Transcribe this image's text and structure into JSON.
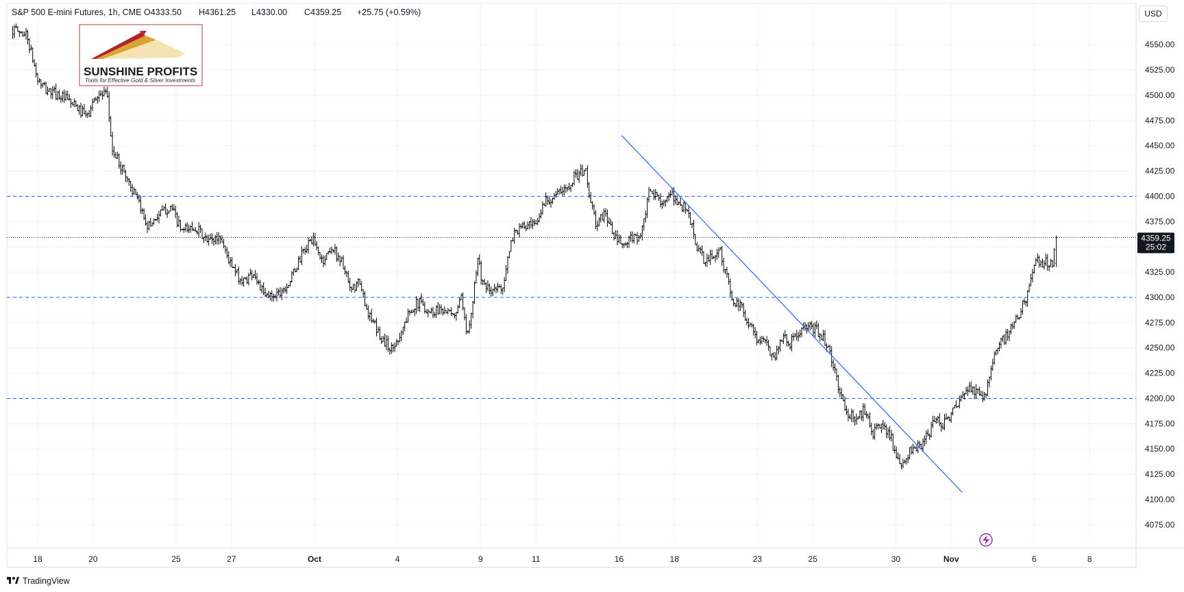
{
  "header": {
    "symbol_line": "S&P 500 E-mini Futures, 1h, CME",
    "open": "O4333.50",
    "high": "H4361.25",
    "low": "L4330.00",
    "close": "C4359.25",
    "change": "+25.75 (+0.59%)"
  },
  "currency": "USD",
  "price_badge": {
    "price": "4359.25",
    "countdown": "25:02"
  },
  "logo": {
    "name": "SUNSHINE PROFITS",
    "tagline": "Tools for Effective Gold & Silver Investments"
  },
  "footer": {
    "brand": "TradingView"
  },
  "icons": {
    "brand_icon": "tradingview-logo-icon",
    "lightning_icon": "lightning-icon"
  },
  "colors": {
    "candle": "#000000",
    "horizontal_levels": "#2962ff",
    "trend_line": "#2962ff",
    "current_price_line": "#131722",
    "lightning_icon": "#9c27b0"
  },
  "chart_data": {
    "type": "candlestick",
    "title": "S&P 500 E-mini Futures, 1h, CME",
    "y_axis": {
      "min": 4062.5,
      "max": 4575,
      "ticks": [
        4075,
        4100,
        4125,
        4150,
        4175,
        4200,
        4225,
        4250,
        4275,
        4300,
        4325,
        4350,
        4375,
        4400,
        4425,
        4450,
        4475,
        4500,
        4525,
        4550
      ],
      "tick_labels": [
        "4075.00",
        "4100.00",
        "4125.00",
        "4150.00",
        "4175.00",
        "4200.00",
        "4225.00",
        "4250.00",
        "4275.00",
        "4300.00",
        "4325.00",
        "4350.00",
        "4375.00",
        "4400.00",
        "4425.00",
        "4450.00",
        "4475.00",
        "4500.00",
        "4525.00",
        "4550.00"
      ],
      "side": "right"
    },
    "x_axis": {
      "tick_labels": [
        "18",
        "20",
        "25",
        "27",
        "Oct",
        "4",
        "9",
        "11",
        "16",
        "18",
        "23",
        "25",
        "30",
        "Nov",
        "6",
        "8"
      ],
      "tick_day_index": [
        0,
        2,
        5,
        7,
        10,
        13,
        16,
        18,
        21,
        23,
        26,
        28,
        31,
        33,
        36,
        38
      ]
    },
    "horizontal_levels": [
      4400,
      4300,
      4200
    ],
    "current_price": 4359.25,
    "trend_line": {
      "start": {
        "day_index": 21.1,
        "price": 4460
      },
      "end": {
        "day_index": 33.4,
        "price": 4107
      }
    },
    "price_path": [
      [
        -0.9,
        4565
      ],
      [
        -0.4,
        4560
      ],
      [
        0,
        4515
      ],
      [
        0.3,
        4505
      ],
      [
        0.8,
        4500
      ],
      [
        1.3,
        4490
      ],
      [
        1.8,
        4478
      ],
      [
        2.1,
        4500
      ],
      [
        2.5,
        4500
      ],
      [
        2.7,
        4445
      ],
      [
        3.2,
        4420
      ],
      [
        3.6,
        4395
      ],
      [
        4.0,
        4370
      ],
      [
        4.3,
        4380
      ],
      [
        4.8,
        4390
      ],
      [
        5.2,
        4365
      ],
      [
        5.7,
        4370
      ],
      [
        6.1,
        4355
      ],
      [
        6.6,
        4360
      ],
      [
        7.0,
        4330
      ],
      [
        7.4,
        4315
      ],
      [
        7.8,
        4325
      ],
      [
        8.2,
        4300
      ],
      [
        8.7,
        4305
      ],
      [
        9.1,
        4315
      ],
      [
        9.5,
        4340
      ],
      [
        9.9,
        4358
      ],
      [
        10.3,
        4335
      ],
      [
        10.6,
        4350
      ],
      [
        11.0,
        4335
      ],
      [
        11.3,
        4305
      ],
      [
        11.6,
        4315
      ],
      [
        12.0,
        4280
      ],
      [
        12.4,
        4260
      ],
      [
        12.8,
        4248
      ],
      [
        13.2,
        4270
      ],
      [
        13.5,
        4290
      ],
      [
        13.8,
        4295
      ],
      [
        14.2,
        4285
      ],
      [
        14.6,
        4290
      ],
      [
        15.0,
        4280
      ],
      [
        15.3,
        4298
      ],
      [
        15.5,
        4260
      ],
      [
        15.7,
        4295
      ],
      [
        15.9,
        4340
      ],
      [
        16.1,
        4310
      ],
      [
        16.4,
        4305
      ],
      [
        16.8,
        4312
      ],
      [
        17.2,
        4365
      ],
      [
        17.6,
        4370
      ],
      [
        18.0,
        4370
      ],
      [
        18.3,
        4395
      ],
      [
        18.6,
        4400
      ],
      [
        19.0,
        4405
      ],
      [
        19.4,
        4420
      ],
      [
        19.8,
        4425
      ],
      [
        20.0,
        4390
      ],
      [
        20.2,
        4370
      ],
      [
        20.5,
        4385
      ],
      [
        20.8,
        4360
      ],
      [
        21.2,
        4350
      ],
      [
        21.5,
        4360
      ],
      [
        21.8,
        4360
      ],
      [
        22.1,
        4405
      ],
      [
        22.4,
        4398
      ],
      [
        22.7,
        4395
      ],
      [
        22.9,
        4400
      ],
      [
        23.1,
        4395
      ],
      [
        23.5,
        4385
      ],
      [
        23.8,
        4350
      ],
      [
        24.1,
        4335
      ],
      [
        24.4,
        4340
      ],
      [
        24.6,
        4350
      ],
      [
        24.9,
        4320
      ],
      [
        25.1,
        4295
      ],
      [
        25.4,
        4290
      ],
      [
        25.7,
        4275
      ],
      [
        26.0,
        4258
      ],
      [
        26.3,
        4255
      ],
      [
        26.6,
        4240
      ],
      [
        26.9,
        4262
      ],
      [
        27.2,
        4255
      ],
      [
        27.5,
        4265
      ],
      [
        27.8,
        4270
      ],
      [
        28.1,
        4268
      ],
      [
        28.4,
        4260
      ],
      [
        28.6,
        4245
      ],
      [
        28.9,
        4215
      ],
      [
        29.2,
        4185
      ],
      [
        29.6,
        4180
      ],
      [
        29.9,
        4190
      ],
      [
        30.2,
        4165
      ],
      [
        30.5,
        4175
      ],
      [
        30.8,
        4165
      ],
      [
        31.0,
        4140
      ],
      [
        31.2,
        4130
      ],
      [
        31.5,
        4148
      ],
      [
        31.9,
        4152
      ],
      [
        32.2,
        4165
      ],
      [
        32.4,
        4180
      ],
      [
        32.7,
        4175
      ],
      [
        33.0,
        4185
      ],
      [
        33.3,
        4195
      ],
      [
        33.6,
        4210
      ],
      [
        34.0,
        4205
      ],
      [
        34.2,
        4200
      ],
      [
        34.5,
        4240
      ],
      [
        34.8,
        4255
      ],
      [
        35.1,
        4265
      ],
      [
        35.4,
        4280
      ],
      [
        35.7,
        4300
      ],
      [
        35.9,
        4320
      ],
      [
        36.1,
        4335
      ],
      [
        36.4,
        4335
      ],
      [
        36.7,
        4333.5
      ],
      [
        36.75,
        4359.25
      ]
    ],
    "grid": true,
    "legend": "none"
  }
}
